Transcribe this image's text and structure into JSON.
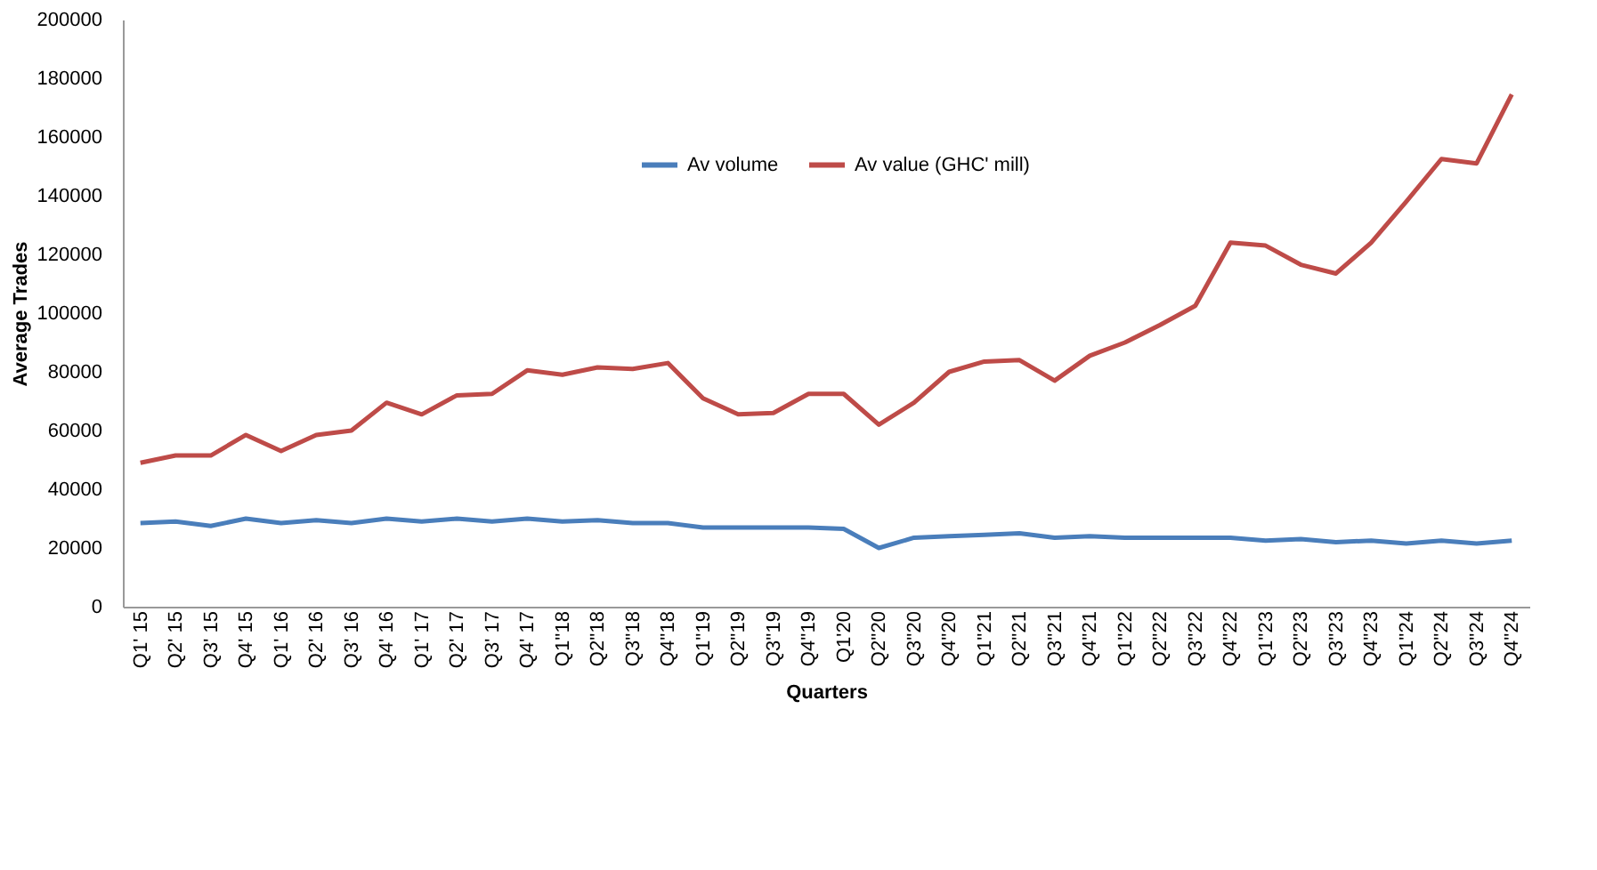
{
  "chart_data": {
    "type": "line",
    "xlabel": "Quarters",
    "ylabel": "Average Trades",
    "categories": [
      "Q1' 15",
      "Q2' 15",
      "Q3' 15",
      "Q4' 15",
      "Q1' 16",
      "Q2' 16",
      "Q3' 16",
      "Q4' 16",
      "Q1' 17",
      "Q2' 17",
      "Q3' 17",
      "Q4' 17",
      "Q1''18",
      "Q2''18",
      "Q3''18",
      "Q4''18",
      "Q1''19",
      "Q2''19",
      "Q3''19",
      "Q4''19",
      "Q1'20",
      "Q2''20",
      "Q3''20",
      "Q4''20",
      "Q1''21",
      "Q2''21",
      "Q3''21",
      "Q4''21",
      "Q1''22",
      "Q2''22",
      "Q3''22",
      "Q4''22",
      "Q1''23",
      "Q2''23",
      "Q3''23",
      "Q4''23",
      "Q1''24",
      "Q2''24",
      "Q3''24",
      "Q4''24"
    ],
    "series": [
      {
        "name": "Av volume",
        "color": "#4a7ebb",
        "values": [
          28500,
          29000,
          27500,
          30000,
          28500,
          29500,
          28500,
          30000,
          29000,
          30000,
          29000,
          30000,
          29000,
          29500,
          28500,
          28500,
          27000,
          27000,
          27000,
          27000,
          26500,
          20000,
          23500,
          24000,
          24500,
          25000,
          23500,
          24000,
          23500,
          23500,
          23500,
          23500,
          22500,
          23000,
          22000,
          22500,
          21500,
          22500,
          21500,
          22500
        ]
      },
      {
        "name": "Av value (GHC' mill)",
        "color": "#be4b48",
        "values": [
          49000,
          51500,
          51500,
          58500,
          53000,
          58500,
          60000,
          69500,
          65500,
          72000,
          72500,
          80500,
          79000,
          81500,
          81000,
          83000,
          71000,
          65500,
          66000,
          72500,
          72500,
          62000,
          69500,
          80000,
          83500,
          84000,
          77000,
          85500,
          90000,
          96000,
          102500,
          124000,
          123000,
          116500,
          113500,
          124000,
          138000,
          152500,
          151000,
          174500
        ]
      }
    ],
    "ylim": [
      0,
      200000
    ],
    "yticks": [
      0,
      20000,
      40000,
      60000,
      80000,
      100000,
      120000,
      140000,
      160000,
      180000,
      200000
    ],
    "grid": false,
    "legend": "top",
    "line_style": "solid",
    "marker": "none"
  }
}
